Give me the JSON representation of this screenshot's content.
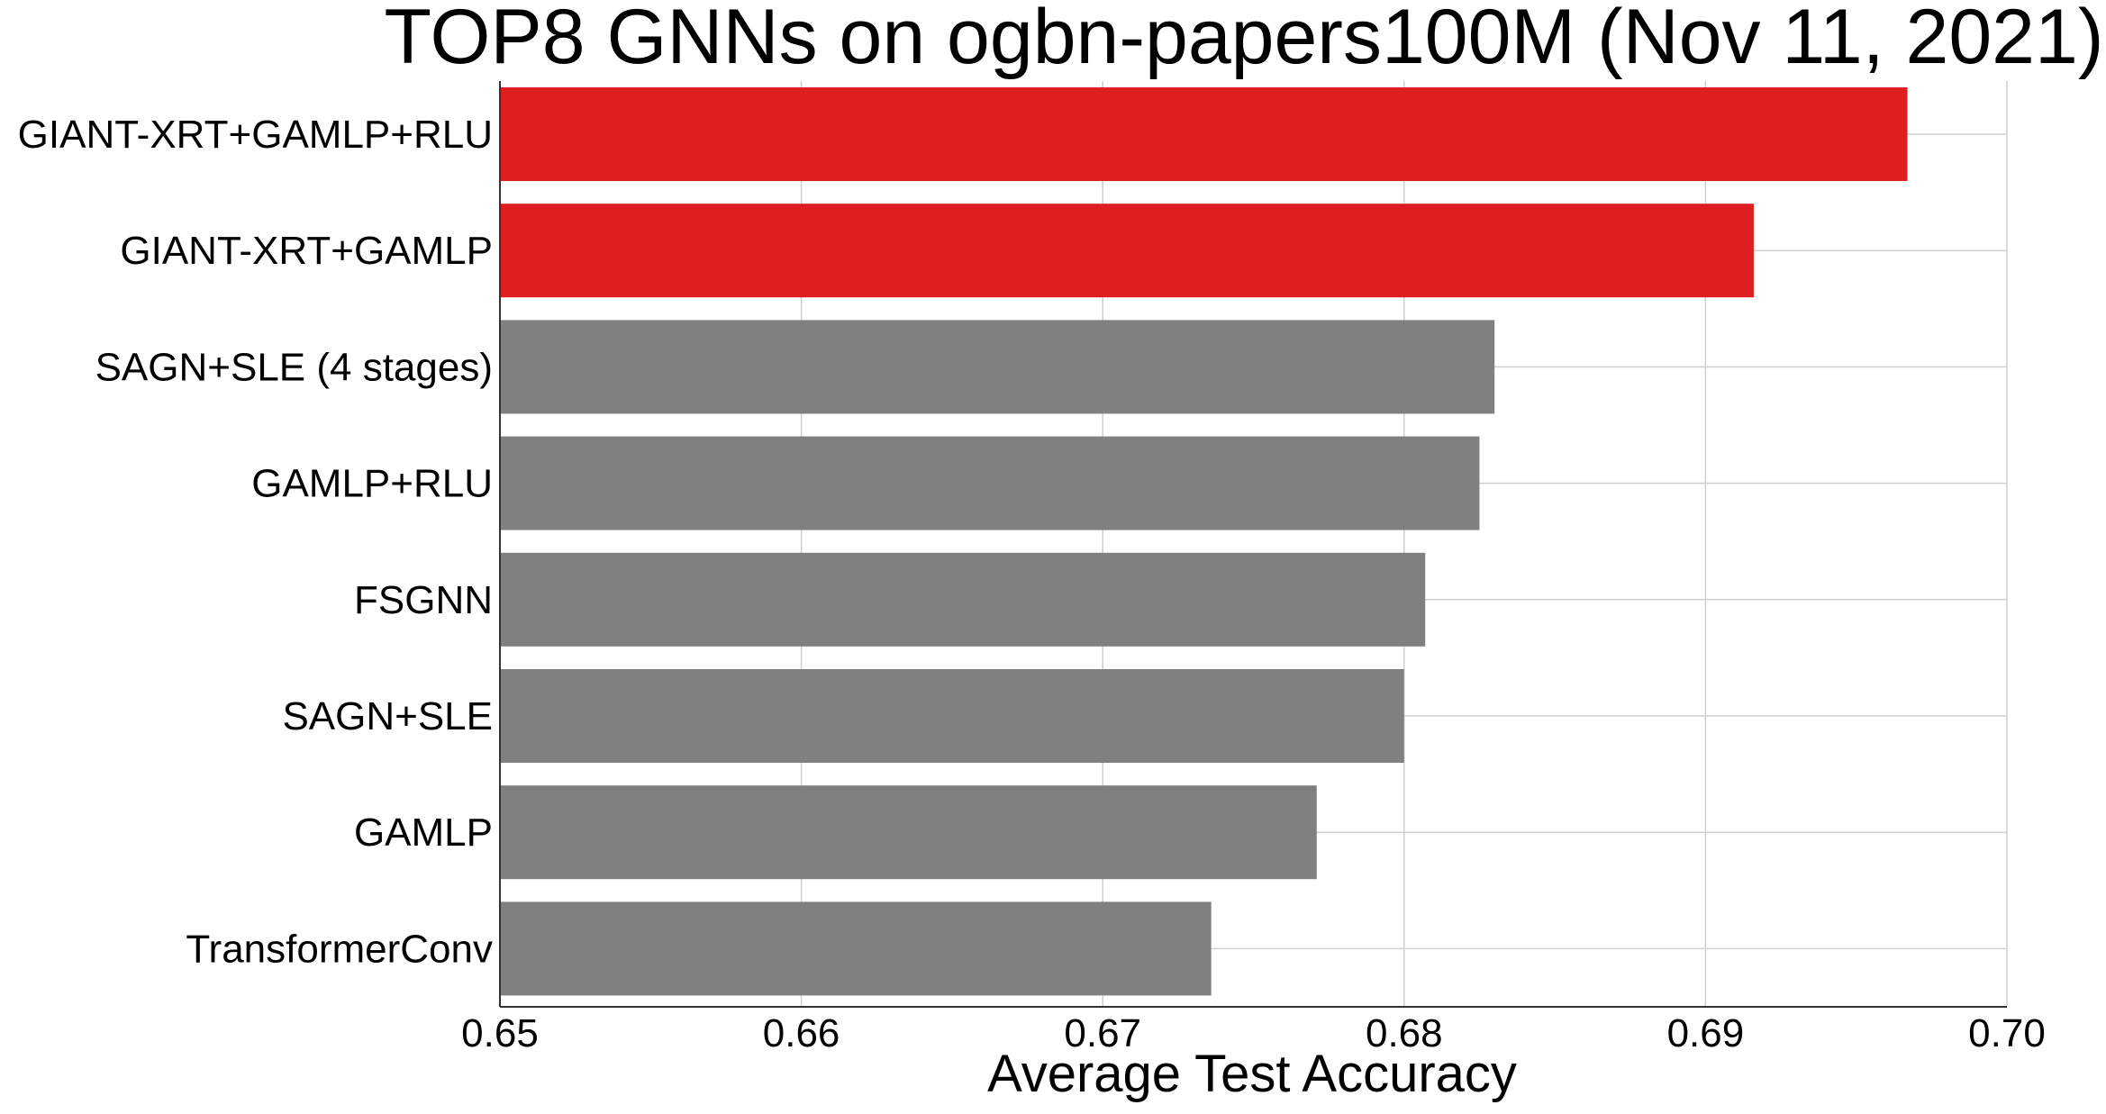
{
  "chart_data": {
    "type": "bar",
    "orientation": "horizontal",
    "title": "TOP8 GNNs on ogbn-papers100M (Nov 11, 2021)",
    "xlabel": "Average Test Accuracy",
    "ylabel": "",
    "xlim": [
      0.65,
      0.7
    ],
    "xticks": [
      "0.65",
      "0.66",
      "0.67",
      "0.68",
      "0.69",
      "0.70"
    ],
    "grid": true,
    "categories": [
      "GIANT-XRT+GAMLP+RLU",
      "GIANT-XRT+GAMLP",
      "SAGN+SLE (4 stages)",
      "GAMLP+RLU",
      "FSGNN",
      "SAGN+SLE",
      "GAMLP",
      "TransformerConv"
    ],
    "values": [
      0.6967,
      0.6916,
      0.683,
      0.6825,
      0.6807,
      0.68,
      0.6771,
      0.6736
    ],
    "highlighted": [
      true,
      true,
      false,
      false,
      false,
      false,
      false,
      false
    ],
    "colors": {
      "highlight": "#dd1f22",
      "default": "#808080",
      "grid": "#cfcfcf",
      "axis": "#333333"
    }
  }
}
